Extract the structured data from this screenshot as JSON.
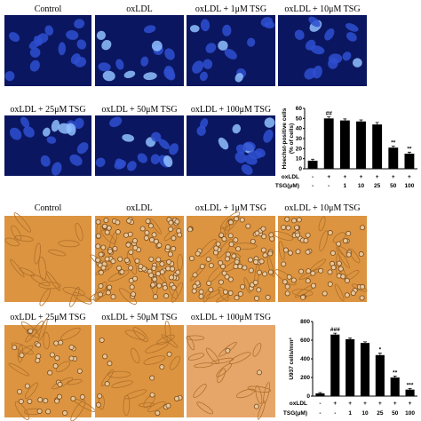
{
  "panels_a": [
    "Control",
    "oxLDL",
    "oxLDL + 1μM TSG",
    "oxLDL + 10μM TSG",
    "oxLDL + 25μM TSG",
    "oxLDL + 50μM TSG",
    "oxLDL + 100μM TSG"
  ],
  "panels_b": [
    "Control",
    "oxLDL",
    "oxLDL + 1μM TSG",
    "oxLDL + 10μM TSG",
    "oxLDL + 25μM TSG",
    "oxLDL + 50μM TSG",
    "oxLDL + 100μM TSG"
  ],
  "chart_data": [
    {
      "type": "bar",
      "y_label": "Hoechst-positive cells",
      "y_label_2": "(% of cells)",
      "values": [
        8,
        50,
        48,
        47,
        44,
        21,
        15
      ],
      "errors": [
        1.5,
        1.5,
        1.5,
        1.5,
        2,
        1.5,
        1.5
      ],
      "annotations": [
        null,
        "##",
        null,
        null,
        null,
        "**",
        "**"
      ],
      "color": "#000000",
      "ylim": [
        0,
        60
      ],
      "yticks": [
        0,
        10,
        20,
        30,
        40,
        50,
        60
      ],
      "condition_rows": [
        {
          "label": "oxLDL",
          "values": [
            "-",
            "+",
            "+",
            "+",
            "+",
            "+",
            "+"
          ]
        },
        {
          "label": "TSG(μM)",
          "values": [
            "-",
            "-",
            "1",
            "10",
            "25",
            "50",
            "100"
          ]
        }
      ]
    },
    {
      "type": "bar",
      "y_label": "U937 cells/mm²",
      "values": [
        30,
        660,
        610,
        570,
        440,
        200,
        70
      ],
      "errors": [
        8,
        15,
        12,
        12,
        20,
        15,
        12
      ],
      "annotations": [
        null,
        "###",
        null,
        null,
        "*",
        "**",
        "***"
      ],
      "color": "#000000",
      "ylim": [
        0,
        800
      ],
      "yticks": [
        0,
        200,
        400,
        600,
        800
      ],
      "condition_rows": [
        {
          "label": "oxLDL",
          "values": [
            "-",
            "+",
            "+",
            "+",
            "+",
            "+",
            "+"
          ]
        },
        {
          "label": "TSG(μM)",
          "values": [
            "-",
            "-",
            "1",
            "10",
            "25",
            "50",
            "100"
          ]
        }
      ]
    }
  ]
}
